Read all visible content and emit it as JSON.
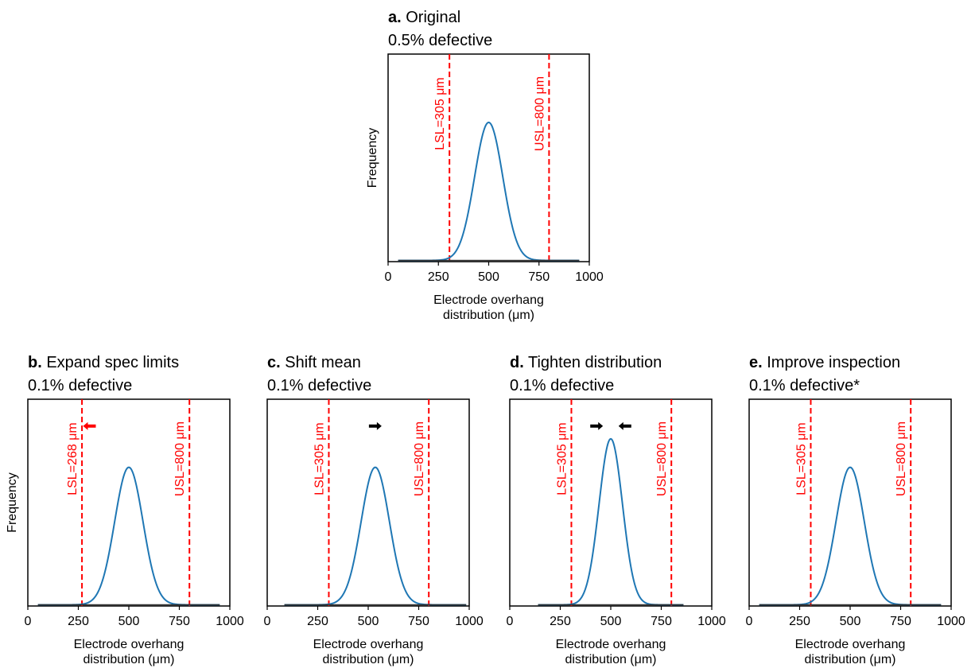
{
  "colors": {
    "curve": "#1f77b4",
    "limit": "#ff0000",
    "axis": "#000000",
    "arrow_red": "#ff0000",
    "arrow_black": "#000000"
  },
  "chart_data": [
    {
      "panel": "a",
      "type": "line",
      "title_letter": "a.",
      "title": "Original",
      "subtitle": "0.5% defective",
      "xlabel": "Electrode overhang\ndistribution (μm)",
      "ylabel": "Frequency",
      "xlim": [
        0,
        1000
      ],
      "xticks": [
        0,
        250,
        500,
        750,
        1000
      ],
      "y_ticks_shown": false,
      "distribution": {
        "mean": 500,
        "sd": 70,
        "x_range": [
          50,
          950
        ]
      },
      "lsl": {
        "value": 305,
        "label": "LSL=305 μm"
      },
      "usl": {
        "value": 800,
        "label": "USL=800 μm"
      },
      "arrows": []
    },
    {
      "panel": "b",
      "type": "line",
      "title_letter": "b.",
      "title": "Expand spec limits",
      "subtitle": "0.1% defective",
      "xlabel": "Electrode overhang\ndistribution (μm)",
      "ylabel": "Frequency",
      "xlim": [
        0,
        1000
      ],
      "xticks": [
        0,
        250,
        500,
        750,
        1000
      ],
      "y_ticks_shown": false,
      "distribution": {
        "mean": 500,
        "sd": 70,
        "x_range": [
          50,
          950
        ]
      },
      "lsl": {
        "value": 268,
        "label": "LSL=268 μm"
      },
      "usl": {
        "value": 800,
        "label": "USL=800 μm"
      },
      "arrows": [
        {
          "x": 305,
          "dir": "left",
          "color": "red",
          "height_frac": 0.87
        }
      ]
    },
    {
      "panel": "c",
      "type": "line",
      "title_letter": "c.",
      "title": "Shift mean",
      "subtitle": "0.1% defective",
      "xlabel": "Electrode overhang\ndistribution (μm)",
      "ylabel": "",
      "xlim": [
        0,
        1000
      ],
      "xticks": [
        0,
        250,
        500,
        750,
        1000
      ],
      "y_ticks_shown": false,
      "distribution": {
        "mean": 535,
        "sd": 70,
        "x_range": [
          85,
          985
        ]
      },
      "lsl": {
        "value": 305,
        "label": "LSL=305 μm"
      },
      "usl": {
        "value": 800,
        "label": "USL=800 μm"
      },
      "arrows": [
        {
          "x": 535,
          "dir": "right",
          "color": "black",
          "height_frac": 0.87
        }
      ]
    },
    {
      "panel": "d",
      "type": "line",
      "title_letter": "d.",
      "title": "Tighten distribution",
      "subtitle": "0.1% defective",
      "xlabel": "Electrode overhang\ndistribution (μm)",
      "ylabel": "",
      "xlim": [
        0,
        1000
      ],
      "xticks": [
        0,
        250,
        500,
        750,
        1000
      ],
      "y_ticks_shown": false,
      "distribution": {
        "mean": 500,
        "sd": 58,
        "x_range": [
          140,
          860
        ]
      },
      "lsl": {
        "value": 305,
        "label": "LSL=305 μm"
      },
      "usl": {
        "value": 800,
        "label": "USL=800 μm"
      },
      "arrows": [
        {
          "x": 430,
          "dir": "right",
          "color": "black",
          "height_frac": 0.87
        },
        {
          "x": 570,
          "dir": "left",
          "color": "black",
          "height_frac": 0.87
        }
      ]
    },
    {
      "panel": "e",
      "type": "line",
      "title_letter": "e.",
      "title": "Improve inspection",
      "subtitle": "0.1% defective*",
      "xlabel": "Electrode overhang\ndistribution (μm)",
      "ylabel": "",
      "xlim": [
        0,
        1000
      ],
      "xticks": [
        0,
        250,
        500,
        750,
        1000
      ],
      "y_ticks_shown": false,
      "distribution": {
        "mean": 500,
        "sd": 70,
        "x_range": [
          50,
          950
        ]
      },
      "lsl": {
        "value": 305,
        "label": "LSL=305 μm"
      },
      "usl": {
        "value": 800,
        "label": "USL=800 μm"
      },
      "arrows": []
    }
  ]
}
